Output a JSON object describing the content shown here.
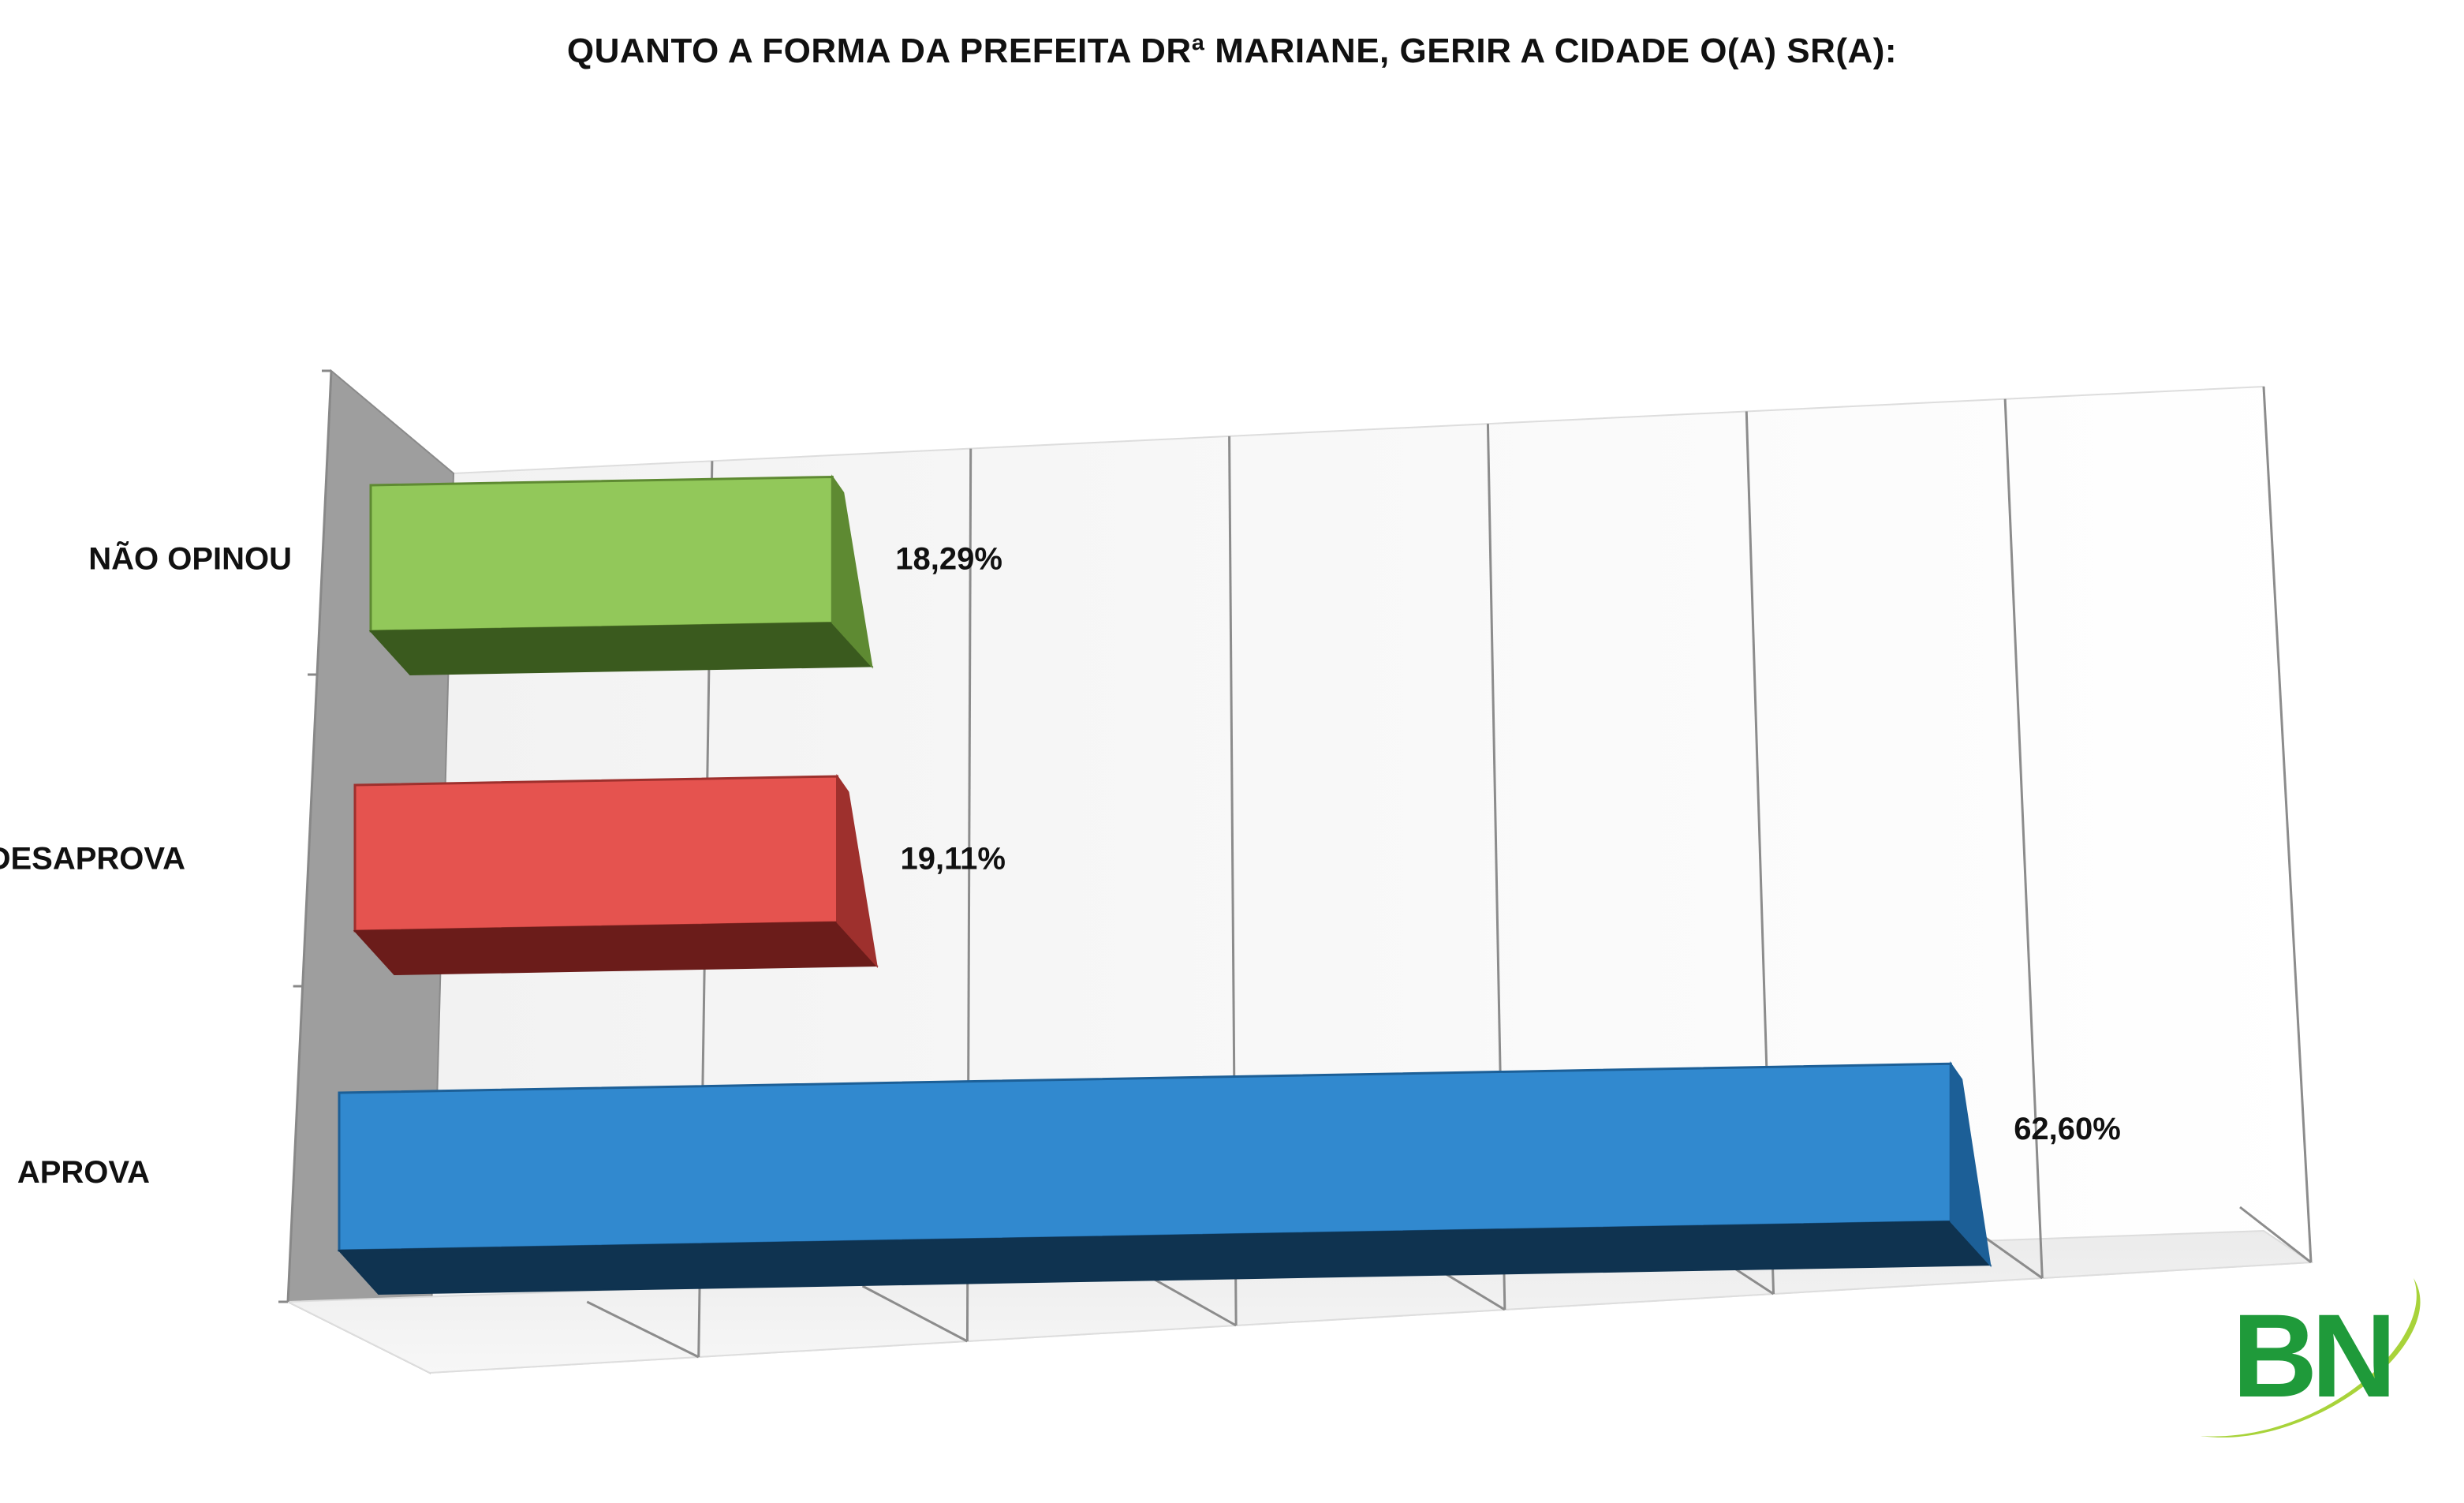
{
  "chart_data": {
    "type": "bar",
    "orientation": "horizontal",
    "three_d": true,
    "title": "QUANTO A FORMA DA PREFEITA DRª MARIANE, GERIR A CIDADE O(A) SR(A):",
    "categories": [
      "NÃO OPINOU",
      "DESAPROVA",
      "APROVA"
    ],
    "values": [
      18.29,
      19.11,
      62.6
    ],
    "value_labels": [
      "18,29%",
      "19,11%",
      "62,60%"
    ],
    "unit": "%",
    "xlim": [
      0,
      70
    ],
    "grid": true,
    "legend": "none",
    "colors": {
      "NÃO OPINOU": {
        "front": "#92c85a",
        "top": "#3a5a1e",
        "side": "#5e8a32"
      },
      "DESAPROVA": {
        "front": "#e5534f",
        "top": "#6b1c1a",
        "side": "#9e302d"
      },
      "APROVA": {
        "front": "#3189cf",
        "top": "#0f3350",
        "side": "#1c5f97"
      }
    }
  },
  "logo": {
    "text": "BN",
    "colors": {
      "letters": "#1f9a3a",
      "swoosh": "#a8d33a"
    }
  }
}
